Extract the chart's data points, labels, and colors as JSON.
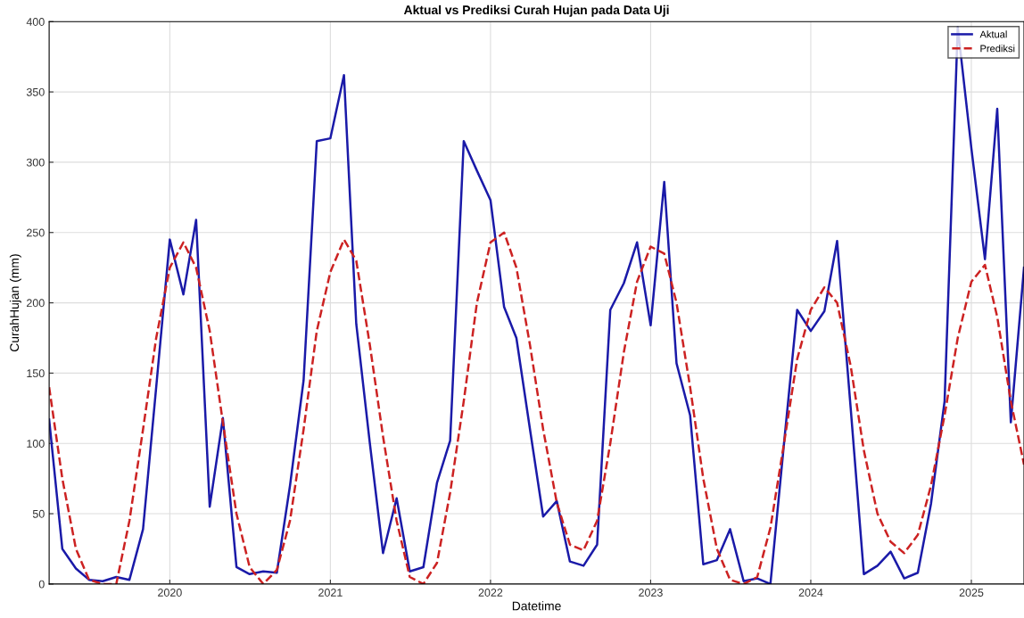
{
  "chart_data": {
    "type": "line",
    "title": "Aktual vs Prediksi Curah Hujan pada Data Uji",
    "xlabel": "Datetime",
    "ylabel": "CurahHujan (mm)",
    "x": [
      "2019-04",
      "2019-05",
      "2019-06",
      "2019-07",
      "2019-08",
      "2019-09",
      "2019-10",
      "2019-11",
      "2019-12",
      "2020-01",
      "2020-02",
      "2020-03",
      "2020-04",
      "2020-05",
      "2020-06",
      "2020-07",
      "2020-08",
      "2020-09",
      "2020-10",
      "2020-11",
      "2020-12",
      "2021-01",
      "2021-02",
      "2021-03",
      "2021-04",
      "2021-05",
      "2021-06",
      "2021-07",
      "2021-08",
      "2021-09",
      "2021-10",
      "2021-11",
      "2021-12",
      "2022-01",
      "2022-02",
      "2022-03",
      "2022-04",
      "2022-05",
      "2022-06",
      "2022-07",
      "2022-08",
      "2022-09",
      "2022-10",
      "2022-11",
      "2022-12",
      "2023-01",
      "2023-02",
      "2023-03",
      "2023-04",
      "2023-05",
      "2023-06",
      "2023-07",
      "2023-08",
      "2023-09",
      "2023-10",
      "2023-11",
      "2023-12",
      "2024-01",
      "2024-02",
      "2024-03",
      "2024-04",
      "2024-05",
      "2024-06",
      "2024-07",
      "2024-08",
      "2024-09",
      "2024-10",
      "2024-11",
      "2024-12",
      "2025-01",
      "2025-02",
      "2025-03",
      "2025-04",
      "2025-05"
    ],
    "series": [
      {
        "name": "Aktual",
        "color": "#1a1aa8",
        "line_style": "solid",
        "values": [
          117,
          25,
          11,
          3,
          2,
          5,
          3,
          39,
          140,
          245,
          206,
          259,
          55,
          118,
          12,
          7,
          9,
          8,
          70,
          145,
          315,
          317,
          362,
          185,
          100,
          22,
          61,
          9,
          12,
          72,
          102,
          315,
          294,
          273,
          197,
          175,
          110,
          48,
          59,
          16,
          13,
          28,
          195,
          214,
          243,
          184,
          286,
          157,
          120,
          14,
          17,
          39,
          2,
          4,
          0,
          100,
          195,
          180,
          194,
          244,
          125,
          7,
          13,
          23,
          4,
          8,
          57,
          130,
          396,
          310,
          231,
          338,
          115,
          225
        ]
      },
      {
        "name": "Prediksi",
        "color": "#cc2222",
        "line_style": "dashed",
        "values": [
          140,
          75,
          25,
          3,
          0,
          0,
          45,
          110,
          175,
          225,
          243,
          225,
          180,
          115,
          50,
          12,
          0,
          10,
          45,
          110,
          180,
          222,
          245,
          230,
          170,
          105,
          45,
          5,
          0,
          15,
          65,
          130,
          200,
          243,
          250,
          225,
          170,
          110,
          58,
          28,
          24,
          45,
          100,
          165,
          215,
          240,
          235,
          200,
          140,
          75,
          25,
          3,
          0,
          5,
          40,
          100,
          160,
          195,
          211,
          200,
          155,
          95,
          50,
          30,
          22,
          35,
          70,
          120,
          175,
          215,
          227,
          190,
          130,
          85
        ]
      }
    ],
    "xlim": [
      "2019-04",
      "2025-05"
    ],
    "xticks": [
      {
        "value": "2020-01",
        "label": "2020"
      },
      {
        "value": "2021-01",
        "label": "2021"
      },
      {
        "value": "2022-01",
        "label": "2022"
      },
      {
        "value": "2023-01",
        "label": "2023"
      },
      {
        "value": "2024-01",
        "label": "2024"
      },
      {
        "value": "2025-01",
        "label": "2025"
      }
    ],
    "ylim": [
      0,
      400
    ],
    "yticks": [
      0,
      50,
      100,
      150,
      200,
      250,
      300,
      350,
      400
    ],
    "grid": true,
    "legend": "top right",
    "marker": "none"
  }
}
